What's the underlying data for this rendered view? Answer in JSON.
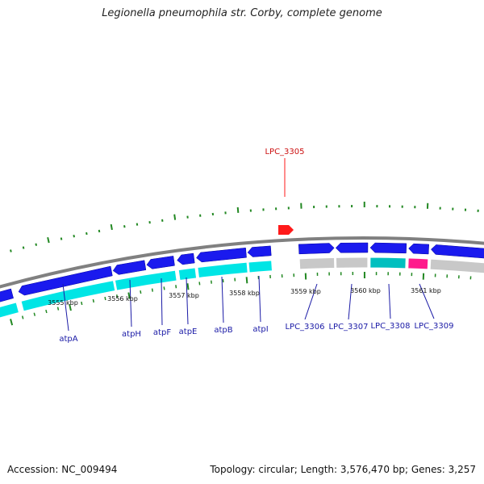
{
  "title": "Legionella pneumophila str. Corby, complete genome",
  "footer": {
    "accession": "Accession: NC_009494",
    "summary": "Topology: circular; Length: 3,576,470 bp; Genes: 3,257"
  },
  "highlight": {
    "label": "LPC_3305",
    "color": "#ff1a1a"
  },
  "colors": {
    "backbone": "#808080",
    "gene_arrow": "#1a1aee",
    "cds_bar": "#00e5e5",
    "cds_bar_grey": "#c8c8c8",
    "cds_bar_teal": "#00bfbf",
    "cds_bar_pink": "#ff1a8c",
    "tick": "#228822",
    "label": "#1a1aa6"
  },
  "scale_labels": [
    "3555 kbp",
    "3556 kbp",
    "3557 kbp",
    "3558 kbp",
    "3559 kbp",
    "3560 kbp",
    "3561 kbp"
  ],
  "genes": [
    {
      "label": "atpA"
    },
    {
      "label": "atpH"
    },
    {
      "label": "atpF"
    },
    {
      "label": "atpE"
    },
    {
      "label": "atpB"
    },
    {
      "label": "atpI"
    },
    {
      "label": "LPC_3306"
    },
    {
      "label": "LPC_3307"
    },
    {
      "label": "LPC_3308"
    },
    {
      "label": "LPC_3309"
    }
  ]
}
